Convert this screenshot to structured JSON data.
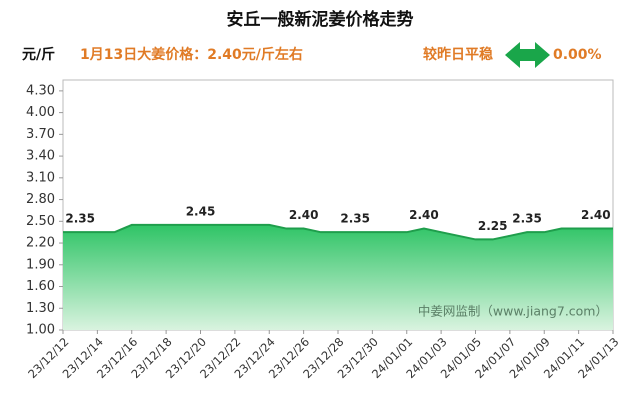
{
  "chart_data": {
    "type": "area",
    "title": "安丘一般新泥姜价格走势",
    "y_unit": "元/斤",
    "subtitle": "1月13日大姜价格：2.40元/斤左右",
    "change_label": "较昨日平稳",
    "change_value": "0.00%",
    "watermark": "中姜网监制（www.jiang7.com）",
    "color": "#27b45a",
    "categories": [
      "23/12/12",
      null,
      "23/12/14",
      null,
      "23/12/16",
      null,
      "23/12/18",
      null,
      "23/12/20",
      null,
      "23/12/22",
      null,
      "23/12/24",
      null,
      "23/12/26",
      null,
      "23/12/28",
      null,
      "23/12/30",
      null,
      "24/01/01",
      null,
      "24/01/03",
      null,
      "24/01/05",
      null,
      "24/01/07",
      null,
      "24/01/09",
      null,
      "24/01/11",
      null,
      "24/01/13"
    ],
    "values": [
      2.35,
      2.35,
      2.35,
      2.35,
      2.45,
      2.45,
      2.45,
      2.45,
      2.45,
      2.45,
      2.45,
      2.45,
      2.45,
      2.4,
      2.4,
      2.35,
      2.35,
      2.35,
      2.35,
      2.35,
      2.35,
      2.4,
      2.35,
      2.3,
      2.25,
      2.25,
      2.3,
      2.35,
      2.35,
      2.4,
      2.4,
      2.4,
      2.4
    ],
    "value_labels": [
      null,
      "2.35",
      null,
      null,
      null,
      null,
      null,
      null,
      "2.45",
      null,
      null,
      null,
      null,
      null,
      "2.40",
      null,
      null,
      "2.35",
      null,
      null,
      null,
      "2.40",
      null,
      null,
      null,
      "2.25",
      null,
      "2.35",
      null,
      null,
      null,
      "2.40",
      null
    ],
    "ylim": [
      1.0,
      4.45
    ],
    "yticks": [
      {
        "value": 1.0,
        "label": "1.00"
      },
      {
        "value": 1.3,
        "label": "1.30"
      },
      {
        "value": 1.6,
        "label": "1.60"
      },
      {
        "value": 1.9,
        "label": "1.90"
      },
      {
        "value": 2.2,
        "label": "2.20"
      },
      {
        "value": 2.5,
        "label": "2.50"
      },
      {
        "value": 2.8,
        "label": "2.80"
      },
      {
        "value": 3.1,
        "label": "3.10"
      },
      {
        "value": 3.4,
        "label": "3.40"
      },
      {
        "value": 3.7,
        "label": "3.70"
      },
      {
        "value": 4.0,
        "label": "4.00"
      },
      {
        "value": 4.3,
        "label": "4.30"
      }
    ]
  }
}
